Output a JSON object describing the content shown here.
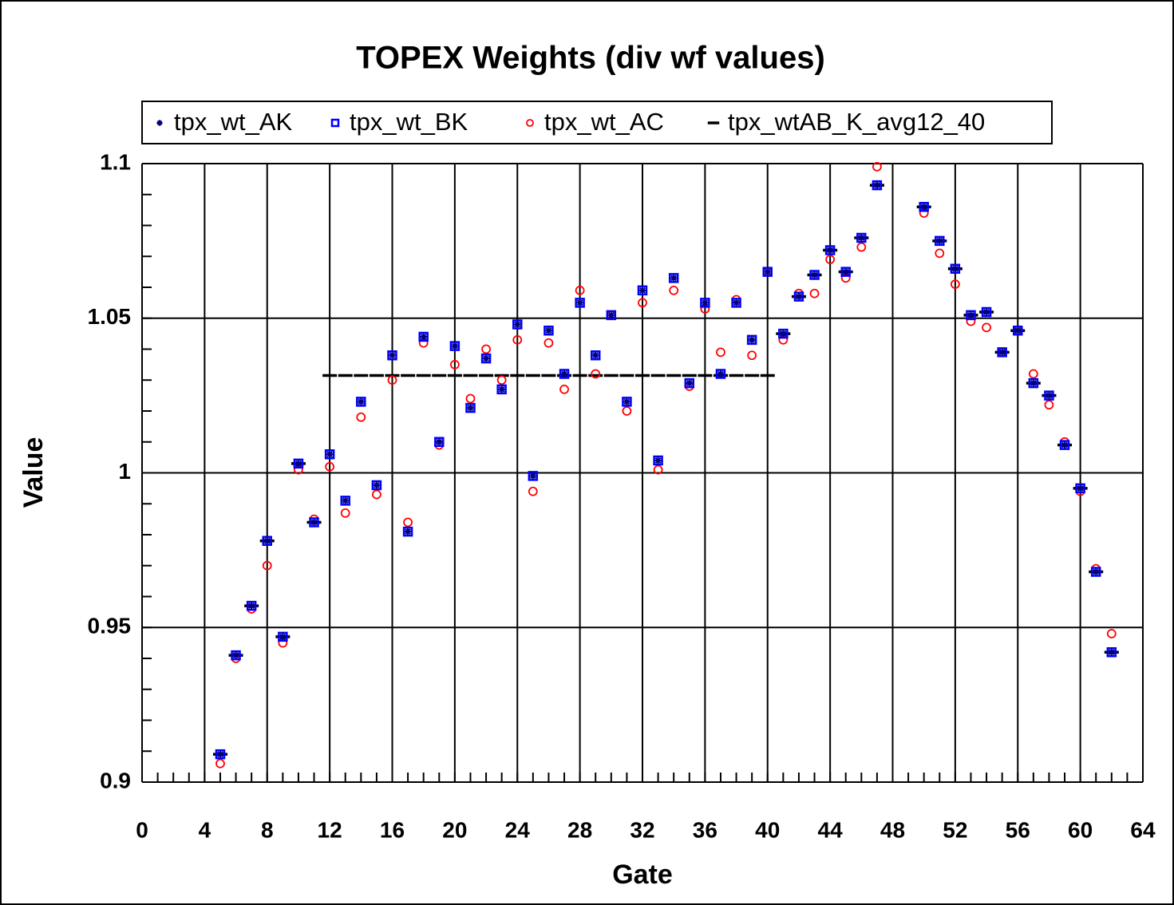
{
  "chart_data": {
    "type": "scatter",
    "title": "TOPEX Weights (div wf values)",
    "x_label": "Gate",
    "y_label": "Value",
    "xlim": [
      0,
      64
    ],
    "xticks": [
      0,
      4,
      8,
      12,
      16,
      20,
      24,
      28,
      32,
      36,
      40,
      44,
      48,
      52,
      56,
      60,
      64
    ],
    "ylim": [
      0.9,
      1.1
    ],
    "yticks": [
      0.9,
      0.95,
      1,
      1.05,
      1.1
    ],
    "grid": true,
    "x": [
      5,
      6,
      7,
      8,
      9,
      10,
      11,
      12,
      13,
      14,
      15,
      16,
      17,
      18,
      19,
      20,
      21,
      22,
      23,
      24,
      25,
      26,
      27,
      28,
      29,
      30,
      31,
      32,
      33,
      34,
      35,
      36,
      37,
      38,
      39,
      40,
      41,
      42,
      43,
      44,
      45,
      46,
      47,
      50,
      51,
      52,
      53,
      54,
      55,
      56,
      57,
      58,
      59,
      60,
      61,
      62
    ],
    "series": [
      {
        "name": "tpx_wt_AK",
        "color": "#000080",
        "marker": "asterisk",
        "values": [
          0.909,
          0.941,
          0.957,
          0.978,
          0.947,
          1.003,
          0.984,
          1.006,
          0.991,
          1.023,
          0.996,
          1.038,
          0.981,
          1.044,
          1.01,
          1.041,
          1.021,
          1.037,
          1.027,
          1.048,
          0.999,
          1.046,
          1.032,
          1.055,
          1.038,
          1.051,
          1.023,
          1.059,
          1.004,
          1.063,
          1.029,
          1.055,
          1.032,
          1.055,
          1.043,
          1.065,
          1.045,
          1.057,
          1.064,
          1.072,
          1.065,
          1.076,
          1.093,
          1.086,
          1.075,
          1.066,
          1.051,
          1.052,
          1.039,
          1.046,
          1.029,
          1.025,
          1.009,
          0.995,
          0.968,
          0.942
        ]
      },
      {
        "name": "tpx_wt_BK",
        "color": "#0000ff",
        "marker": "square",
        "values": [
          0.909,
          0.941,
          0.957,
          0.978,
          0.947,
          1.003,
          0.984,
          1.006,
          0.991,
          1.023,
          0.996,
          1.038,
          0.981,
          1.044,
          1.01,
          1.041,
          1.021,
          1.037,
          1.027,
          1.048,
          0.999,
          1.046,
          1.032,
          1.055,
          1.038,
          1.051,
          1.023,
          1.059,
          1.004,
          1.063,
          1.029,
          1.055,
          1.032,
          1.055,
          1.043,
          1.065,
          1.045,
          1.057,
          1.064,
          1.072,
          1.065,
          1.076,
          1.093,
          1.086,
          1.075,
          1.066,
          1.051,
          1.052,
          1.039,
          1.046,
          1.029,
          1.025,
          1.009,
          0.995,
          0.968,
          0.942
        ]
      },
      {
        "name": "tpx_wt_AC",
        "color": "#ff0000",
        "marker": "circle",
        "values": [
          0.906,
          0.94,
          0.956,
          0.97,
          0.945,
          1.001,
          0.985,
          1.002,
          0.987,
          1.018,
          0.993,
          1.03,
          0.984,
          1.042,
          1.009,
          1.035,
          1.024,
          1.04,
          1.03,
          1.043,
          0.994,
          1.042,
          1.027,
          1.059,
          1.032,
          1.051,
          1.02,
          1.055,
          1.001,
          1.059,
          1.028,
          1.053,
          1.039,
          1.056,
          1.038,
          1.065,
          1.043,
          1.058,
          1.058,
          1.069,
          1.063,
          1.073,
          1.099,
          1.084,
          1.071,
          1.061,
          1.049,
          1.047,
          1.039,
          1.046,
          1.032,
          1.022,
          1.01,
          0.994,
          0.969,
          0.948
        ]
      },
      {
        "name": "tpx_wtAB_K_avg12_40",
        "color": "#000000",
        "marker": "dash",
        "values": [
          0.909,
          0.941,
          0.957,
          0.978,
          0.947,
          1.003,
          0.984,
          1.0315,
          1.0315,
          1.0315,
          1.0315,
          1.0315,
          1.0315,
          1.0315,
          1.0315,
          1.0315,
          1.0315,
          1.0315,
          1.0315,
          1.0315,
          1.0315,
          1.0315,
          1.0315,
          1.0315,
          1.0315,
          1.0315,
          1.0315,
          1.0315,
          1.0315,
          1.0315,
          1.0315,
          1.0315,
          1.0315,
          1.0315,
          1.0315,
          1.0315,
          1.045,
          1.057,
          1.064,
          1.072,
          1.065,
          1.076,
          1.093,
          1.086,
          1.075,
          1.066,
          1.051,
          1.052,
          1.039,
          1.046,
          1.029,
          1.025,
          1.009,
          0.995,
          0.968,
          0.942
        ]
      }
    ]
  }
}
